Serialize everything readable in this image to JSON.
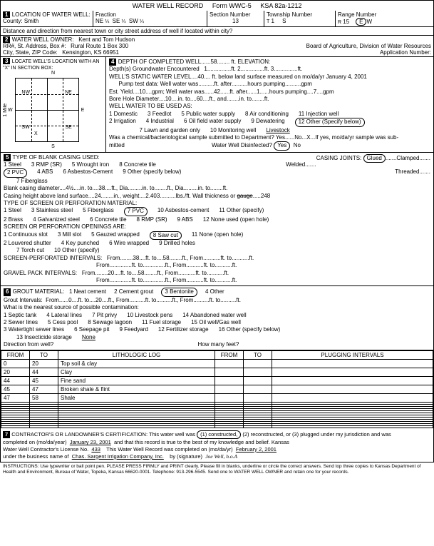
{
  "form": {
    "title": "WATER WELL RECORD",
    "form_no": "Form WWC-5",
    "ksa": "KSA 82a-1212"
  },
  "loc": {
    "header": "LOCATION OF WATER WELL:",
    "county_lbl": "County:",
    "county": "Smith",
    "fraction_lbl": "Fraction",
    "f1": "NE",
    "f2": "SE",
    "f3": "SW",
    "section_lbl": "Section Number",
    "section": "13",
    "township_lbl": "Township Number",
    "township": "1",
    "township_s": "S",
    "range_lbl": "Range Number",
    "range": "15",
    "range_e": "E",
    "distance": "Distance and direction from nearest town or city street address of well if located within city?"
  },
  "owner": {
    "header": "WATER WELL OWNER:",
    "name": "Kent and Tom Hudson",
    "addr_lbl": "RR#, St. Address, Box #:",
    "addr": "Rural Route 1 Box 300",
    "city_lbl": "City, State, ZIP Code:",
    "city": "Kensington, KS  66951",
    "board": "Board of Agriculture, Division of Water Resources",
    "app_lbl": "Application Number:"
  },
  "locate": {
    "header": "LOCATE WELL'S LOCATION WITH AN \"X\" IN SECTION BOX:",
    "nw": "NW",
    "ne": "NE",
    "sw": "SW",
    "se": "SE",
    "n": "N",
    "s": "S",
    "e": "E",
    "w": "W",
    "mile": "1 Mile"
  },
  "depth": {
    "header": "DEPTH OF COMPLETED WELL",
    "depth": "58",
    "elev_lbl": "ft. ELEVATION:",
    "gw_lbl": "Depth(s) Groundwater Encountered",
    "gw1": "1.",
    "gw2": "ft. 2.",
    "gw3": "ft. 3.",
    "static_lbl": "WELL'S STATIC WATER LEVEL",
    "static": "40",
    "static_after": "ft. below land surface measured on mo/da/yr",
    "date": "January 4, 2001",
    "pump_lbl": "Pump test data:  Well water was",
    "pump_after": "ft. after",
    "pump_hrs": "hours pumping",
    "pump_gpm": "gpm",
    "est_lbl": "Est. Yield",
    "est": "10",
    "est_unit": "gpm;  Well water was",
    "est_val": "42",
    "est_after": "ft. after",
    "est_hrs": "1",
    "est_hrs_lbl": "hours pumping",
    "est_gpm": "7",
    "est_gpm_lbl": "gpm",
    "bore_lbl": "Bore Hole Diameter",
    "bore": "10",
    "bore_in": "in. to",
    "bore_to": "60",
    "bore_ft": "ft., and",
    "bore_in2": "in. to",
    "bore_ft2": "ft.",
    "use_lbl": "WELL WATER TO BE USED AS:",
    "uses": [
      "1 Domestic",
      "2 Irrigation",
      "3 Feedlot",
      "4 Industrial",
      "5 Public water supply",
      "6 Oil field water supply",
      "7 Lawn and garden only",
      "8 Air conditioning",
      "9 Dewatering",
      "10 Monitoring well",
      "11 Injection well",
      "12 Other (Specify below)"
    ],
    "livestock": "Livestock",
    "chem_lbl": "Was a chemical/bacteriological sample submitted to Department? Yes",
    "no": "No",
    "x": "X",
    "chem_after": "If yes, mo/da/yr sample was sub-",
    "mitted": "mitted",
    "disinf": "Water Well Disinfected?",
    "yes": "Yes",
    "no2": "No"
  },
  "casing": {
    "header": "TYPE OF BLANK CASING USED:",
    "types": [
      "1 Steel",
      "2 PVC",
      "3 RMP (SR)",
      "4 ABS",
      "5 Wrought iron",
      "6 Asbestos-Cement",
      "7 Fiberglass",
      "8 Concrete tile",
      "9 Other (specify below)"
    ],
    "joints_lbl": "CASING JOINTS:",
    "glued": "Glued",
    "clamped": "Clamped",
    "welded": "Welded",
    "threaded": "Threaded",
    "dia_lbl": "Blank casing diameter",
    "dia": "4½",
    "dia_in": "in. to",
    "dia_to": "38",
    "dia_ft": "ft., Dia.",
    "dia_in2": "in. to",
    "dia_ft2": "ft., Dia.",
    "dia_in3": "in. to",
    "dia_ft3": "ft.",
    "height_lbl": "Casing height above land surface",
    "height": "24",
    "weight_lbl": "in., weight",
    "weight": "2.403",
    "weight_after": "lbs./ft. Wall thickness or",
    "thick": ".248"
  },
  "screen": {
    "header": "TYPE OF SCREEN OR PERFORATION MATERIAL:",
    "types": [
      "1 Steel",
      "2 Brass",
      "3 Stainless steel",
      "4 Galvanized steel",
      "5 Fiberglass",
      "6 Concrete tile",
      "7 PVC",
      "8 RMP (SR)",
      "9 ABS",
      "10 Asbestos-cement",
      "11 Other (specify)",
      "12 None used (open hole)"
    ],
    "open_lbl": "SCREEN OR PERFORATION OPENINGS ARE:",
    "opens": [
      "1 Continuous slot",
      "2 Louvered shutter",
      "3 Mill slot",
      "4 Key punched",
      "5 Gauzed wrapped",
      "6 Wire wrapped",
      "7 Torch cut",
      "8 Saw cut",
      "9 Drilled holes",
      "10 Other (specify)",
      "11 None (open hole)"
    ],
    "perf_lbl": "SCREEN-PERFORATED INTERVALS:",
    "from": "From",
    "to": "ft. to",
    "p1f": "38",
    "p1t": "58",
    "gravel_lbl": "GRAVEL PACK INTERVALS:",
    "g1f": "20",
    "g1t": "58"
  },
  "grout": {
    "header": "GROUT MATERIAL:",
    "types": [
      "1 Neat cement",
      "2 Cement grout",
      "3 Bentonite",
      "4 Other"
    ],
    "int_lbl": "Grout Intervals:",
    "from": "From",
    "f1": "0",
    "to": "ft. to",
    "t1": "20",
    "contam_lbl": "What is the nearest source of possible contamination:",
    "contam": [
      "1 Septic tank",
      "2 Sewer lines",
      "3 Watertight sewer lines",
      "4 Lateral lines",
      "5 Cess pool",
      "6 Seepage pit",
      "7 Pit privy",
      "8 Sewage lagoon",
      "9 Feedyard",
      "10 Livestock pens",
      "11 Fuel storage",
      "12 Fertilizer storage",
      "13 Insecticide storage",
      "14 Abandoned water well",
      "15 Oil well/Gas well",
      "16 Other (specify below)"
    ],
    "none": "None",
    "dir_lbl": "Direction from well?",
    "feet_lbl": "How many feet?"
  },
  "lith": {
    "headers": [
      "FROM",
      "TO",
      "LITHOLOGIC LOG",
      "FROM",
      "TO",
      "PLUGGING INTERVALS"
    ],
    "rows": [
      [
        "0",
        "20",
        "Top soil & clay",
        "",
        "",
        ""
      ],
      [
        "20",
        "44",
        "Clay",
        "",
        "",
        ""
      ],
      [
        "44",
        "45",
        "Fine sand",
        "",
        "",
        ""
      ],
      [
        "45",
        "47",
        "Broken shale & flint",
        "",
        "",
        ""
      ],
      [
        "47",
        "58",
        "Shale",
        "",
        "",
        ""
      ]
    ]
  },
  "cert": {
    "header": "CONTRACTOR'S OR LANDOWNER'S CERTIFICATION: This water well was",
    "constructed": "(1) constructed,",
    "recon": "(2) reconstructed, or (3) plugged under my jurisdiction and was",
    "completed": "completed on (mo/da/year)",
    "date1": "January 23, 2001",
    "true": "and that this record is true to the best of my knowledge and belief. Kansas",
    "lic_lbl": "Water Well Contractor's License No.",
    "lic": "433",
    "rec_lbl": "This Water Well Record was completed on (mo/da/yr)",
    "date2": "February 2, 2001",
    "bus_lbl": "under the business name of",
    "bus": "Chas. Sargent Irrigation Company, Inc.",
    "sig_lbl": "by (signature)"
  },
  "instr": "INSTRUCTIONS: Use typewriter or ball point pen. PLEASE PRESS FIRMLY and PRINT clearly. Please fill in blanks, underline or circle the correct answers. Send top three copies to Kansas Department of Health and Environment, Bureau of Water, Topeka, Kansas 66620-0001. Telephone: 913-296-5545. Send one to WATER WELL OWNER and retain one for your records."
}
